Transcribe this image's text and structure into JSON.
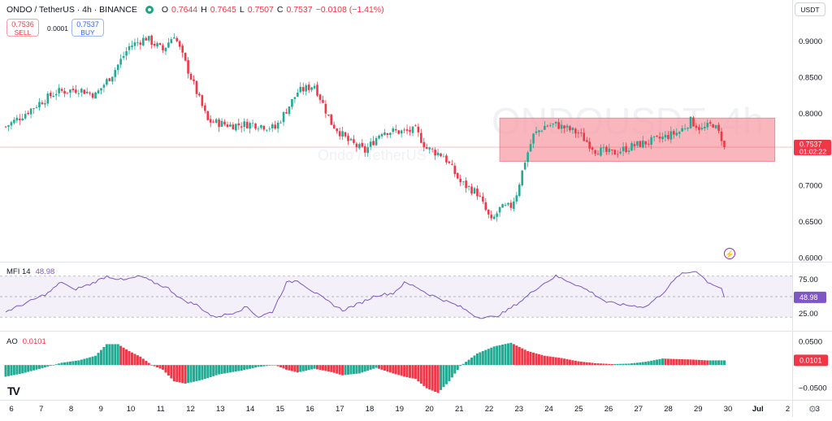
{
  "header": {
    "symbol": "ONDO / TetherUS · 4h · BINANCE",
    "o_label": "O",
    "o": "0.7644",
    "h_label": "H",
    "h": "0.7645",
    "l_label": "L",
    "l": "0.7507",
    "c_label": "C",
    "c": "0.7537",
    "change": "−0.0108 (−1.41%)"
  },
  "trade": {
    "sell_price": "0.7536",
    "sell_label": "SELL",
    "spread": "0.0001",
    "buy_price": "0.7537",
    "buy_label": "BUY"
  },
  "currency_button": "USDT",
  "watermark": {
    "symbol": "ONDOUSDT, 4h",
    "name": "Ondo / TetherUS"
  },
  "price_scale": [
    "0.9000",
    "0.8500",
    "0.8000",
    "0.7500",
    "0.7000",
    "0.6500",
    "0.6000"
  ],
  "price_label": {
    "price": "0.7537",
    "countdown": "01:02:22"
  },
  "mfi": {
    "name": "MFI 14",
    "value": "48.98",
    "scale": [
      "75.00",
      "25.00"
    ]
  },
  "ao": {
    "name": "AO",
    "value": "0.0101",
    "scale": [
      "0.0500",
      "−0.0500"
    ],
    "last": "0.0101"
  },
  "time_axis": [
    "6",
    "7",
    "8",
    "9",
    "10",
    "11",
    "12",
    "13",
    "14",
    "15",
    "16",
    "17",
    "18",
    "19",
    "20",
    "21",
    "22",
    "23",
    "24",
    "25",
    "26",
    "27",
    "28",
    "29",
    "30",
    "Jul",
    "2",
    "3"
  ],
  "colors": {
    "up": "#22ab94",
    "down": "#f23645",
    "mfi": "#7e57c2",
    "box": "#f7a1ab"
  },
  "icons": [
    "tradingview-logo",
    "settings-icon",
    "lightning-icon",
    "market-open-dot"
  ],
  "chart_data": {
    "type": "candlestick",
    "title": "ONDO / TetherUS · 4h · BINANCE",
    "ylim": [
      0.595,
      0.935
    ],
    "x_labels": [
      "6",
      "7",
      "8",
      "9",
      "10",
      "11",
      "12",
      "13",
      "14",
      "15",
      "16",
      "17",
      "18",
      "19",
      "20",
      "21",
      "22",
      "23",
      "24",
      "25",
      "26",
      "27",
      "28",
      "29",
      "30",
      "Jul"
    ],
    "anchors": [
      [
        0,
        0.782
      ],
      [
        5,
        0.795
      ],
      [
        12,
        0.815
      ],
      [
        18,
        0.83
      ],
      [
        26,
        0.834
      ],
      [
        32,
        0.826
      ],
      [
        38,
        0.855
      ],
      [
        44,
        0.893
      ],
      [
        50,
        0.905
      ],
      [
        56,
        0.888
      ],
      [
        60,
        0.91
      ],
      [
        64,
        0.87
      ],
      [
        72,
        0.79
      ],
      [
        80,
        0.784
      ],
      [
        88,
        0.786
      ],
      [
        96,
        0.78
      ],
      [
        104,
        0.83
      ],
      [
        110,
        0.84
      ],
      [
        116,
        0.787
      ],
      [
        122,
        0.762
      ],
      [
        128,
        0.748
      ],
      [
        134,
        0.776
      ],
      [
        142,
        0.775
      ],
      [
        146,
        0.777
      ],
      [
        150,
        0.752
      ],
      [
        156,
        0.742
      ],
      [
        162,
        0.705
      ],
      [
        168,
        0.69
      ],
      [
        173,
        0.65
      ],
      [
        176,
        0.668
      ],
      [
        180,
        0.672
      ],
      [
        182,
        0.69
      ],
      [
        185,
        0.735
      ],
      [
        188,
        0.77
      ],
      [
        192,
        0.783
      ],
      [
        196,
        0.785
      ],
      [
        204,
        0.773
      ],
      [
        210,
        0.75
      ],
      [
        216,
        0.745
      ],
      [
        224,
        0.756
      ],
      [
        232,
        0.764
      ],
      [
        240,
        0.775
      ],
      [
        244,
        0.79
      ],
      [
        248,
        0.778
      ],
      [
        252,
        0.786
      ],
      [
        256,
        0.76
      ]
    ],
    "last_close": 0.7537,
    "range_box": {
      "from_index": 176,
      "to_index": 274,
      "top": 0.794,
      "bottom": 0.734
    },
    "mfi": {
      "ylim": [
        0,
        100
      ],
      "bands": [
        80,
        50,
        20
      ],
      "anchors": [
        [
          0,
          28
        ],
        [
          8,
          42
        ],
        [
          15,
          55
        ],
        [
          20,
          72
        ],
        [
          24,
          60
        ],
        [
          30,
          68
        ],
        [
          36,
          80
        ],
        [
          42,
          74
        ],
        [
          48,
          80
        ],
        [
          52,
          72
        ],
        [
          58,
          62
        ],
        [
          63,
          45
        ],
        [
          68,
          38
        ],
        [
          74,
          20
        ],
        [
          80,
          25
        ],
        [
          86,
          35
        ],
        [
          90,
          20
        ],
        [
          95,
          28
        ],
        [
          100,
          70
        ],
        [
          104,
          74
        ],
        [
          108,
          62
        ],
        [
          114,
          45
        ],
        [
          120,
          30
        ],
        [
          126,
          40
        ],
        [
          132,
          52
        ],
        [
          138,
          55
        ],
        [
          142,
          70
        ],
        [
          146,
          65
        ],
        [
          150,
          55
        ],
        [
          156,
          45
        ],
        [
          162,
          35
        ],
        [
          168,
          20
        ],
        [
          174,
          20
        ],
        [
          178,
          28
        ],
        [
          184,
          45
        ],
        [
          190,
          65
        ],
        [
          196,
          80
        ],
        [
          202,
          70
        ],
        [
          208,
          58
        ],
        [
          214,
          42
        ],
        [
          220,
          38
        ],
        [
          228,
          35
        ],
        [
          234,
          55
        ],
        [
          240,
          82
        ],
        [
          246,
          88
        ],
        [
          250,
          72
        ],
        [
          256,
          60
        ],
        [
          262,
          48.98
        ]
      ]
    },
    "ao": {
      "ylim": [
        -0.075,
        0.072
      ],
      "anchors": [
        [
          0,
          -0.025
        ],
        [
          6,
          -0.018
        ],
        [
          14,
          -0.005
        ],
        [
          20,
          0.005
        ],
        [
          26,
          0.01
        ],
        [
          32,
          0.02
        ],
        [
          36,
          0.045
        ],
        [
          40,
          0.045
        ],
        [
          44,
          0.03
        ],
        [
          48,
          0.018
        ],
        [
          52,
          0.0
        ],
        [
          56,
          -0.01
        ],
        [
          60,
          -0.035
        ],
        [
          64,
          -0.04
        ],
        [
          70,
          -0.032
        ],
        [
          76,
          -0.02
        ],
        [
          84,
          -0.012
        ],
        [
          90,
          -0.004
        ],
        [
          96,
          0.0
        ],
        [
          100,
          -0.01
        ],
        [
          104,
          -0.016
        ],
        [
          110,
          -0.008
        ],
        [
          116,
          -0.015
        ],
        [
          120,
          -0.022
        ],
        [
          126,
          -0.018
        ],
        [
          132,
          -0.006
        ],
        [
          138,
          -0.018
        ],
        [
          142,
          -0.025
        ],
        [
          146,
          -0.03
        ],
        [
          150,
          -0.05
        ],
        [
          154,
          -0.06
        ],
        [
          158,
          -0.035
        ],
        [
          162,
          -0.002
        ],
        [
          168,
          0.025
        ],
        [
          174,
          0.04
        ],
        [
          180,
          0.048
        ],
        [
          186,
          0.03
        ],
        [
          192,
          0.02
        ],
        [
          198,
          0.015
        ],
        [
          204,
          0.008
        ],
        [
          210,
          0.004
        ],
        [
          216,
          0.002
        ],
        [
          222,
          0.003
        ],
        [
          228,
          0.007
        ],
        [
          234,
          0.014
        ],
        [
          238,
          0.013
        ],
        [
          244,
          0.012
        ],
        [
          250,
          0.01
        ],
        [
          256,
          0.0101
        ]
      ]
    }
  }
}
